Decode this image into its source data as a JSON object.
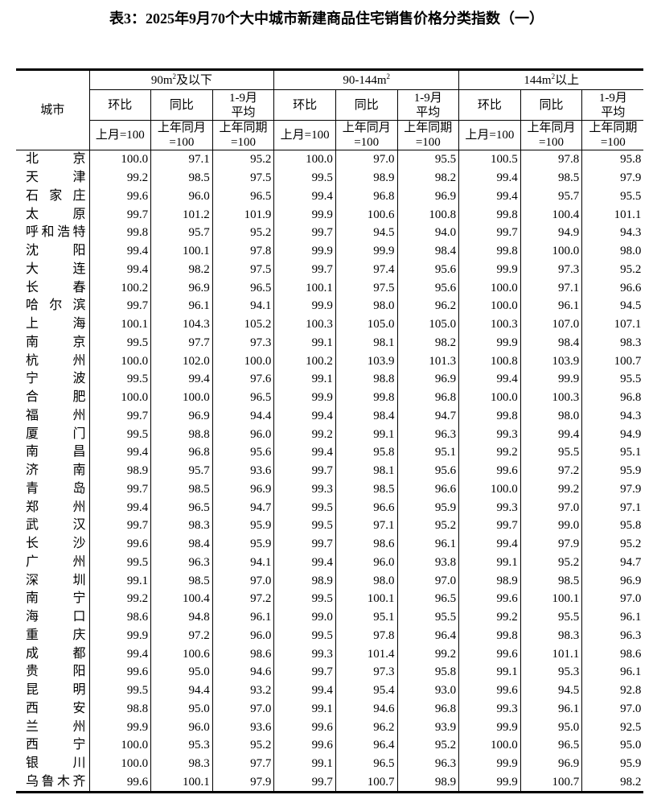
{
  "title": "表3：2025年9月70个大中城市新建商品住宅销售价格分类指数（一）",
  "header": {
    "city_label": "城市",
    "groups": [
      {
        "label": "90m",
        "sup": "2",
        "suffix": "及以下"
      },
      {
        "label": "90-144m",
        "sup": "2",
        "suffix": ""
      },
      {
        "label": "144m",
        "sup": "2",
        "suffix": "以上"
      }
    ],
    "sub": [
      "环比",
      "同比",
      "1-9月平均"
    ],
    "sub_line1": [
      "环比",
      "同比",
      "1-9月"
    ],
    "sub_line2": [
      "",
      "",
      "平均"
    ],
    "units_line1": [
      "上月=100",
      "上年同月",
      "上年同期"
    ],
    "units_line2": [
      "",
      "=100",
      "=100"
    ]
  },
  "rows": [
    {
      "city": "北京",
      "values": [
        "100.0",
        "97.1",
        "95.2",
        "100.0",
        "97.0",
        "95.5",
        "100.5",
        "97.8",
        "95.8"
      ]
    },
    {
      "city": "天津",
      "values": [
        "99.2",
        "98.5",
        "97.5",
        "99.5",
        "98.9",
        "98.2",
        "99.4",
        "98.5",
        "97.9"
      ]
    },
    {
      "city": "石家庄",
      "values": [
        "99.6",
        "96.0",
        "96.5",
        "99.4",
        "96.8",
        "96.9",
        "99.4",
        "95.7",
        "95.5"
      ]
    },
    {
      "city": "太原",
      "values": [
        "99.7",
        "101.2",
        "101.9",
        "99.9",
        "100.6",
        "100.8",
        "99.8",
        "100.4",
        "101.1"
      ]
    },
    {
      "city": "呼和浩特",
      "values": [
        "99.8",
        "95.7",
        "95.2",
        "99.7",
        "94.5",
        "94.0",
        "99.7",
        "94.9",
        "94.3"
      ]
    },
    {
      "city": "沈阳",
      "values": [
        "99.4",
        "100.1",
        "97.8",
        "99.9",
        "99.9",
        "98.4",
        "99.8",
        "100.0",
        "98.0"
      ]
    },
    {
      "city": "大连",
      "values": [
        "99.4",
        "98.2",
        "97.5",
        "99.7",
        "97.4",
        "95.6",
        "99.9",
        "97.3",
        "95.2"
      ]
    },
    {
      "city": "长春",
      "values": [
        "100.2",
        "96.9",
        "96.5",
        "100.1",
        "97.5",
        "95.6",
        "100.0",
        "97.1",
        "96.6"
      ]
    },
    {
      "city": "哈尔滨",
      "values": [
        "99.7",
        "96.1",
        "94.1",
        "99.9",
        "98.0",
        "96.2",
        "100.0",
        "96.1",
        "94.5"
      ]
    },
    {
      "city": "上海",
      "values": [
        "100.1",
        "104.3",
        "105.2",
        "100.3",
        "105.0",
        "105.0",
        "100.3",
        "107.0",
        "107.1"
      ]
    },
    {
      "city": "南京",
      "values": [
        "99.5",
        "97.7",
        "97.3",
        "99.1",
        "98.1",
        "98.2",
        "99.9",
        "98.4",
        "98.3"
      ]
    },
    {
      "city": "杭州",
      "values": [
        "100.0",
        "102.0",
        "100.0",
        "100.2",
        "103.9",
        "101.3",
        "100.8",
        "103.9",
        "100.7"
      ]
    },
    {
      "city": "宁波",
      "values": [
        "99.5",
        "99.4",
        "97.6",
        "99.1",
        "98.8",
        "96.9",
        "99.4",
        "99.9",
        "95.5"
      ]
    },
    {
      "city": "合肥",
      "values": [
        "100.0",
        "100.0",
        "96.5",
        "99.9",
        "99.8",
        "96.8",
        "100.0",
        "100.3",
        "96.8"
      ]
    },
    {
      "city": "福州",
      "values": [
        "99.7",
        "96.9",
        "94.4",
        "99.4",
        "98.4",
        "94.7",
        "99.8",
        "98.0",
        "94.3"
      ]
    },
    {
      "city": "厦门",
      "values": [
        "99.5",
        "98.8",
        "96.0",
        "99.2",
        "99.1",
        "96.3",
        "99.3",
        "99.4",
        "94.9"
      ]
    },
    {
      "city": "南昌",
      "values": [
        "99.4",
        "96.8",
        "95.6",
        "99.4",
        "95.8",
        "95.1",
        "99.2",
        "95.5",
        "95.1"
      ]
    },
    {
      "city": "济南",
      "values": [
        "98.9",
        "95.7",
        "93.6",
        "99.7",
        "98.1",
        "95.6",
        "99.6",
        "97.2",
        "95.9"
      ]
    },
    {
      "city": "青岛",
      "values": [
        "99.7",
        "98.5",
        "96.9",
        "99.3",
        "98.5",
        "96.6",
        "100.0",
        "99.2",
        "97.9"
      ]
    },
    {
      "city": "郑州",
      "values": [
        "99.4",
        "96.5",
        "94.7",
        "99.5",
        "96.6",
        "95.9",
        "99.3",
        "97.0",
        "97.1"
      ]
    },
    {
      "city": "武汉",
      "values": [
        "99.7",
        "98.3",
        "95.9",
        "99.5",
        "97.1",
        "95.2",
        "99.7",
        "99.0",
        "95.8"
      ]
    },
    {
      "city": "长沙",
      "values": [
        "99.6",
        "98.4",
        "95.9",
        "99.7",
        "98.6",
        "96.1",
        "99.4",
        "97.9",
        "95.2"
      ]
    },
    {
      "city": "广州",
      "values": [
        "99.5",
        "96.3",
        "94.1",
        "99.4",
        "96.0",
        "93.8",
        "99.1",
        "95.2",
        "94.7"
      ]
    },
    {
      "city": "深圳",
      "values": [
        "99.1",
        "98.5",
        "97.0",
        "98.9",
        "98.0",
        "97.0",
        "98.9",
        "98.5",
        "96.9"
      ]
    },
    {
      "city": "南宁",
      "values": [
        "99.2",
        "100.4",
        "97.2",
        "99.5",
        "100.1",
        "96.5",
        "99.6",
        "100.1",
        "97.0"
      ]
    },
    {
      "city": "海口",
      "values": [
        "98.6",
        "94.8",
        "96.1",
        "99.0",
        "95.1",
        "95.5",
        "99.2",
        "95.5",
        "96.1"
      ]
    },
    {
      "city": "重庆",
      "values": [
        "99.9",
        "97.2",
        "96.0",
        "99.5",
        "97.8",
        "96.4",
        "99.8",
        "98.3",
        "96.3"
      ]
    },
    {
      "city": "成都",
      "values": [
        "99.4",
        "100.6",
        "98.6",
        "99.3",
        "101.4",
        "99.2",
        "99.6",
        "101.1",
        "98.6"
      ]
    },
    {
      "city": "贵阳",
      "values": [
        "99.6",
        "95.0",
        "94.6",
        "99.7",
        "97.3",
        "95.8",
        "99.1",
        "95.3",
        "96.1"
      ]
    },
    {
      "city": "昆明",
      "values": [
        "99.5",
        "94.4",
        "93.2",
        "99.4",
        "95.4",
        "93.0",
        "99.6",
        "94.5",
        "92.8"
      ]
    },
    {
      "city": "西安",
      "values": [
        "98.8",
        "95.0",
        "97.0",
        "99.1",
        "94.6",
        "96.8",
        "99.3",
        "96.1",
        "97.0"
      ]
    },
    {
      "city": "兰州",
      "values": [
        "99.9",
        "96.0",
        "93.6",
        "99.6",
        "96.2",
        "93.9",
        "99.9",
        "95.0",
        "92.5"
      ]
    },
    {
      "city": "西宁",
      "values": [
        "100.0",
        "95.3",
        "95.2",
        "99.6",
        "96.4",
        "95.2",
        "100.0",
        "96.5",
        "95.0"
      ]
    },
    {
      "city": "银川",
      "values": [
        "100.0",
        "98.3",
        "97.7",
        "99.1",
        "96.5",
        "96.3",
        "99.9",
        "96.9",
        "95.9"
      ]
    },
    {
      "city": "乌鲁木齐",
      "values": [
        "99.6",
        "100.1",
        "97.9",
        "99.7",
        "100.7",
        "98.9",
        "99.9",
        "100.7",
        "98.2"
      ]
    }
  ]
}
